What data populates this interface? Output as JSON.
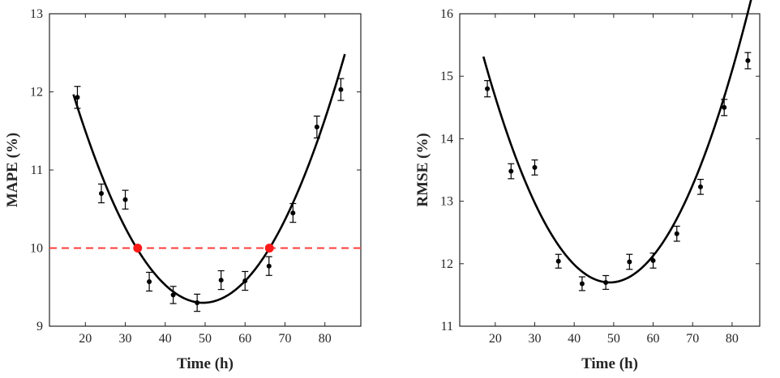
{
  "chart_data": [
    {
      "type": "scatter",
      "xlabel": "Time (h)",
      "ylabel": "MAPE (%)",
      "xlim": [
        11,
        89
      ],
      "ylim": [
        9,
        13
      ],
      "xticks": [
        20,
        30,
        40,
        50,
        60,
        70,
        80
      ],
      "yticks": [
        9,
        10,
        11,
        12,
        13
      ],
      "grid": false,
      "series": [
        {
          "kind": "points_with_errorbars",
          "x": [
            18,
            24,
            30,
            36,
            42,
            48,
            54,
            60,
            66,
            72,
            78,
            84
          ],
          "y": [
            11.93,
            10.7,
            10.62,
            9.57,
            9.4,
            9.3,
            9.59,
            9.58,
            9.77,
            10.45,
            11.55,
            12.03
          ],
          "err": [
            0.14,
            0.12,
            0.12,
            0.12,
            0.11,
            0.11,
            0.12,
            0.12,
            0.12,
            0.12,
            0.14,
            0.14
          ],
          "color": "#000000"
        },
        {
          "kind": "fit_curve",
          "style": "solid",
          "color": "#000000",
          "quadratic": {
            "vertex_x": 49.5,
            "vertex_y": 9.3,
            "a": 0.002526
          },
          "x_range": [
            17,
            85
          ]
        },
        {
          "kind": "threshold_line",
          "style": "dashed",
          "color": "#ff3b3b",
          "y": 10
        },
        {
          "kind": "highlight_points",
          "color": "#ff1a1a",
          "x": [
            33.1,
            66.1
          ],
          "y": [
            10,
            10
          ]
        }
      ]
    },
    {
      "type": "scatter",
      "xlabel": "Time (h)",
      "ylabel": "RMSE (%)",
      "xlim": [
        11,
        87
      ],
      "ylim": [
        11,
        16
      ],
      "xticks": [
        20,
        30,
        40,
        50,
        60,
        70,
        80
      ],
      "yticks": [
        11,
        12,
        13,
        14,
        15,
        16
      ],
      "grid": false,
      "series": [
        {
          "kind": "points_with_errorbars",
          "x": [
            18,
            24,
            30,
            36,
            42,
            48,
            54,
            60,
            66,
            72,
            78,
            84
          ],
          "y": [
            14.8,
            13.48,
            13.54,
            12.04,
            11.68,
            11.7,
            12.03,
            12.05,
            12.48,
            13.23,
            14.5,
            15.25
          ],
          "err": [
            0.13,
            0.12,
            0.12,
            0.11,
            0.11,
            0.11,
            0.12,
            0.12,
            0.12,
            0.12,
            0.13,
            0.13
          ],
          "color": "#000000"
        },
        {
          "kind": "fit_curve",
          "style": "solid",
          "color": "#000000",
          "quadratic": {
            "vertex_x": 49,
            "vertex_y": 11.7,
            "a": 0.00353
          },
          "x_range": [
            17,
            86
          ]
        }
      ]
    }
  ]
}
